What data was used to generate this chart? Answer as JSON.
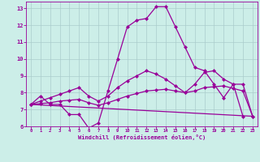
{
  "xlabel": "Windchill (Refroidissement éolien,°C)",
  "bg_color": "#cceee8",
  "line_color": "#990099",
  "grid_color": "#aacccc",
  "xlim": [
    -0.5,
    23.5
  ],
  "ylim": [
    6.0,
    13.4
  ],
  "yticks": [
    6,
    7,
    8,
    9,
    10,
    11,
    12,
    13
  ],
  "xticks": [
    0,
    1,
    2,
    3,
    4,
    5,
    6,
    7,
    8,
    9,
    10,
    11,
    12,
    13,
    14,
    15,
    16,
    17,
    18,
    19,
    20,
    21,
    22,
    23
  ],
  "line1_x": [
    0,
    1,
    2,
    3,
    4,
    5,
    6,
    7,
    8,
    9,
    10,
    11,
    12,
    13,
    14,
    15,
    16,
    17,
    18,
    19,
    20,
    21,
    22
  ],
  "line1_y": [
    7.3,
    7.8,
    7.3,
    7.3,
    6.7,
    6.7,
    5.9,
    6.2,
    8.1,
    10.0,
    11.9,
    12.3,
    12.4,
    13.1,
    13.1,
    11.9,
    10.7,
    9.5,
    9.3,
    8.5,
    7.7,
    8.5,
    6.6
  ],
  "line2_x": [
    0,
    1,
    2,
    3,
    4,
    5,
    6,
    7,
    8,
    9,
    10,
    11,
    12,
    13,
    14,
    15,
    16,
    17,
    18,
    19,
    20,
    21,
    22,
    23
  ],
  "line2_y": [
    7.3,
    7.5,
    7.7,
    7.9,
    8.1,
    8.3,
    7.8,
    7.5,
    7.8,
    8.3,
    8.7,
    9.0,
    9.3,
    9.1,
    8.8,
    8.4,
    8.0,
    8.5,
    9.2,
    9.3,
    8.8,
    8.5,
    8.5,
    6.6
  ],
  "line3_x": [
    0,
    1,
    2,
    3,
    4,
    5,
    6,
    7,
    8,
    9,
    10,
    11,
    12,
    13,
    14,
    15,
    16,
    17,
    18,
    19,
    20,
    21,
    22,
    23
  ],
  "line3_y": [
    7.3,
    7.35,
    7.4,
    7.5,
    7.55,
    7.6,
    7.4,
    7.25,
    7.4,
    7.6,
    7.8,
    7.95,
    8.1,
    8.15,
    8.2,
    8.1,
    8.0,
    8.1,
    8.3,
    8.35,
    8.4,
    8.25,
    8.1,
    6.6
  ],
  "line4_x": [
    0,
    23
  ],
  "line4_y": [
    7.3,
    6.6
  ],
  "markersize": 2.5,
  "linewidth": 0.9
}
